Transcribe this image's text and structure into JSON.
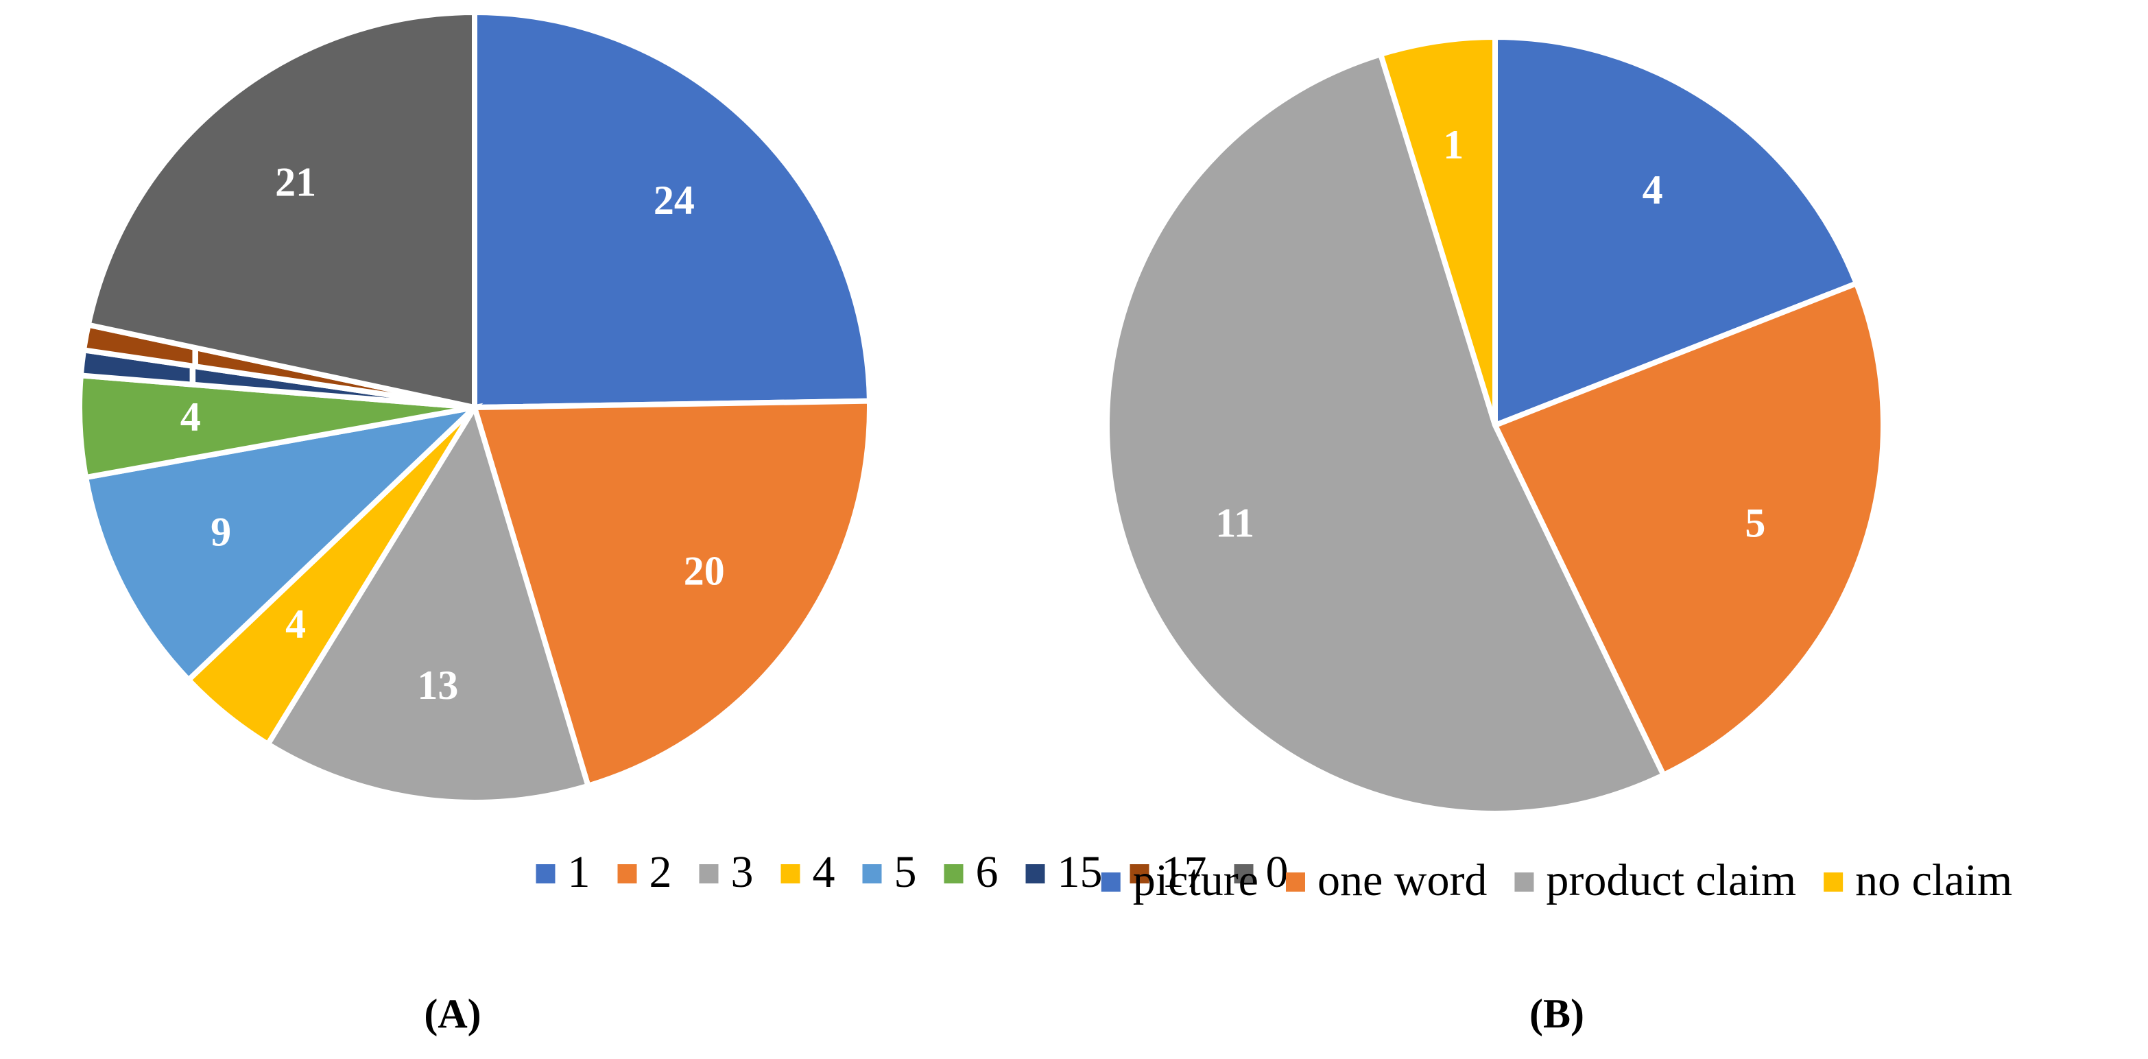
{
  "chart_data": [
    {
      "type": "pie",
      "caption": "(A)",
      "categories": [
        "1",
        "2",
        "3",
        "4",
        "5",
        "6",
        "15",
        "17",
        "0"
      ],
      "values": [
        24,
        20,
        13,
        4,
        9,
        4,
        1,
        1,
        21
      ],
      "colors": [
        "#4472c4",
        "#ed7d31",
        "#a5a5a5",
        "#ffc000",
        "#5b9bd5",
        "#70ad47",
        "#264478",
        "#9e480e",
        "#636363"
      ]
    },
    {
      "type": "pie",
      "caption": "(B)",
      "categories": [
        "picture",
        "one word",
        "product claim",
        "no claim"
      ],
      "values": [
        4,
        5,
        11,
        1
      ],
      "colors": [
        "#4472c4",
        "#ed7d31",
        "#a5a5a5",
        "#ffc000"
      ]
    }
  ]
}
